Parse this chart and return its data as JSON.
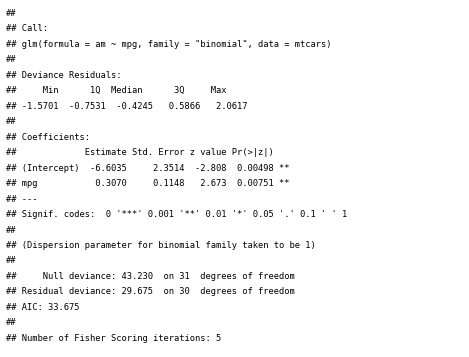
{
  "lines": [
    "##",
    "## Call:",
    "## glm(formula = am ~ mpg, family = \"binomial\", data = mtcars)",
    "##",
    "## Deviance Residuals:",
    "##     Min      1Q  Median      3Q     Max",
    "## -1.5701  -0.7531  -0.4245   0.5866   2.0617",
    "##",
    "## Coefficients:",
    "##             Estimate Std. Error z value Pr(>|z|)    ",
    "## (Intercept)  -6.6035     2.3514  -2.808  0.00498 **",
    "## mpg           0.3070     0.1148   2.673  0.00751 **",
    "## ---",
    "## Signif. codes:  0 '***' 0.001 '**' 0.01 '*' 0.05 '.' 0.1 ' ' 1",
    "##",
    "## (Dispersion parameter for binomial family taken to be 1)",
    "##",
    "##     Null deviance: 43.230  on 31  degrees of freedom",
    "## Residual deviance: 29.675  on 30  degrees of freedom",
    "## AIC: 33.675",
    "##",
    "## Number of Fisher Scoring iterations: 5"
  ],
  "font_family": "monospace",
  "font_size": 6.3,
  "bg_color": "#ffffff",
  "text_color": "#000000",
  "fig_width": 4.69,
  "fig_height": 3.57,
  "dpi": 100
}
